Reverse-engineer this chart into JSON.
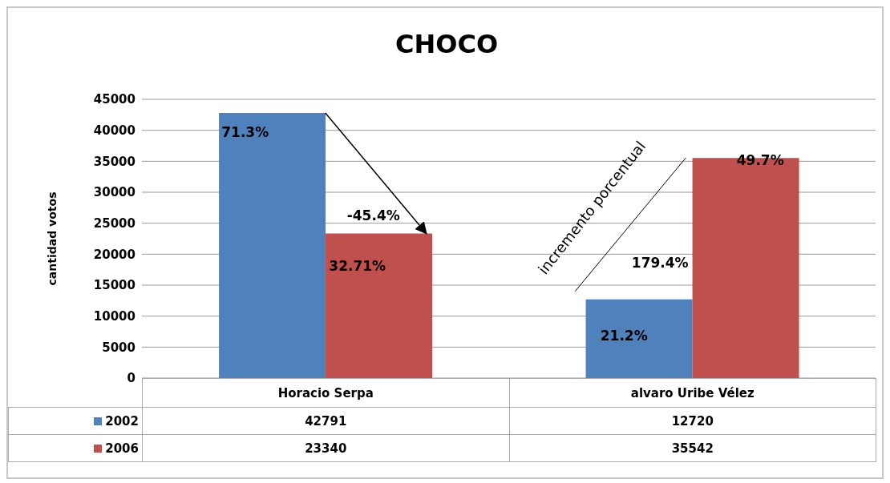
{
  "chart_data": {
    "type": "bar",
    "title": "CHOCO",
    "ylabel": "cantidad votos",
    "categories": [
      "Horacio Serpa",
      "alvaro Uribe Vélez"
    ],
    "series": [
      {
        "name": "2002",
        "color": "#4f81bd",
        "values": [
          42791,
          12720
        ]
      },
      {
        "name": "2006",
        "color": "#c0504d",
        "values": [
          23340,
          35542
        ]
      }
    ],
    "ylim": [
      0,
      45000
    ],
    "yticks": [
      0,
      5000,
      10000,
      15000,
      20000,
      25000,
      30000,
      35000,
      40000,
      45000
    ],
    "grid": "y",
    "legend": "bottom",
    "data_labels": true,
    "annotations": [
      "71.3%",
      "32.71%",
      "-45.4%",
      "21.2%",
      "49.7%",
      "179.4%",
      "incremento porcentual"
    ]
  }
}
